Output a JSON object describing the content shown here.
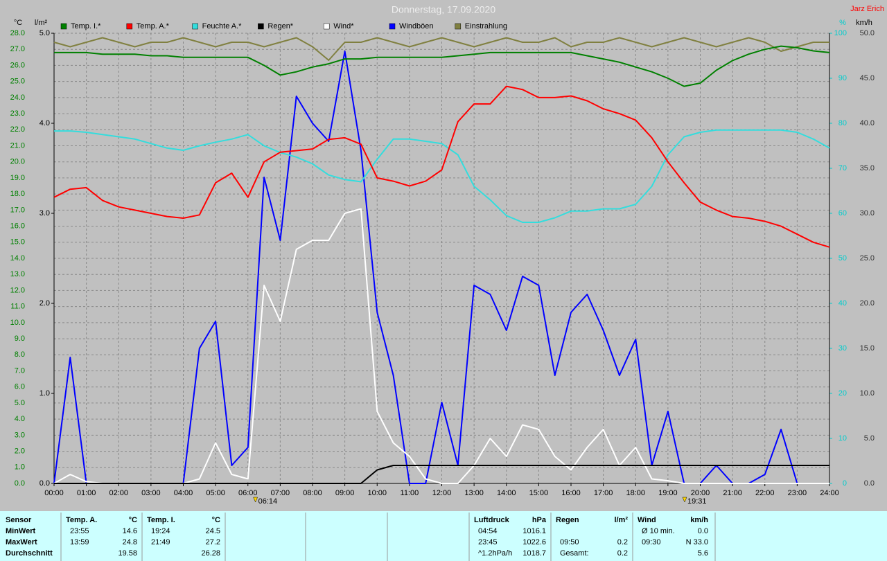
{
  "chart_data": {
    "type": "line",
    "title": "Donnerstag, 17.09.2020",
    "author": "Jarz Erich",
    "ylabel": "°C",
    "y2label": "l/m²",
    "y3label": "%",
    "y4label": "km/h",
    "xlim": [
      0,
      24
    ],
    "xticks": [
      {
        "value": 0,
        "label": "00:00"
      },
      {
        "value": 1,
        "label": "01:00"
      },
      {
        "value": 2,
        "label": "02:00"
      },
      {
        "value": 3,
        "label": "03:00"
      },
      {
        "value": 4,
        "label": "04:00"
      },
      {
        "value": 5,
        "label": "05:00"
      },
      {
        "value": 6,
        "label": "06:00"
      },
      {
        "value": 7,
        "label": "07:00"
      },
      {
        "value": 8,
        "label": "08:00"
      },
      {
        "value": 9,
        "label": "09:00"
      },
      {
        "value": 10,
        "label": "10:00"
      },
      {
        "value": 11,
        "label": "11:00"
      },
      {
        "value": 12,
        "label": "12:00"
      },
      {
        "value": 13,
        "label": "13:00"
      },
      {
        "value": 14,
        "label": "14:00"
      },
      {
        "value": 15,
        "label": "15:00"
      },
      {
        "value": 16,
        "label": "16:00"
      },
      {
        "value": 17,
        "label": "17:00"
      },
      {
        "value": 18,
        "label": "18:00"
      },
      {
        "value": 19,
        "label": "19:00"
      },
      {
        "value": 20,
        "label": "20:00"
      },
      {
        "value": 21,
        "label": "21:00"
      },
      {
        "value": 22,
        "label": "22:00"
      },
      {
        "value": 23,
        "label": "23:00"
      },
      {
        "value": 24,
        "label": "24:00"
      }
    ],
    "ylim": [
      0,
      28
    ],
    "yticks": [
      {
        "value": 0,
        "label": "0.0"
      },
      {
        "value": 1,
        "label": "1.0"
      },
      {
        "value": 2,
        "label": "2.0"
      },
      {
        "value": 3,
        "label": "3.0"
      },
      {
        "value": 4,
        "label": "4.0"
      },
      {
        "value": 5,
        "label": "5.0"
      },
      {
        "value": 6,
        "label": "6.0"
      },
      {
        "value": 7,
        "label": "7.0"
      },
      {
        "value": 8,
        "label": "8.0"
      },
      {
        "value": 9,
        "label": "9.0"
      },
      {
        "value": 10,
        "label": "10.0"
      },
      {
        "value": 11,
        "label": "11.0"
      },
      {
        "value": 12,
        "label": "12.0"
      },
      {
        "value": 13,
        "label": "13.0"
      },
      {
        "value": 14,
        "label": "14.0"
      },
      {
        "value": 15,
        "label": "15.0"
      },
      {
        "value": 16,
        "label": "16.0"
      },
      {
        "value": 17,
        "label": "17.0"
      },
      {
        "value": 18,
        "label": "18.0"
      },
      {
        "value": 19,
        "label": "19.0"
      },
      {
        "value": 20,
        "label": "20.0"
      },
      {
        "value": 21,
        "label": "21.0"
      },
      {
        "value": 22,
        "label": "22.0"
      },
      {
        "value": 23,
        "label": "23.0"
      },
      {
        "value": 24,
        "label": "24.0"
      },
      {
        "value": 25,
        "label": "25.0"
      },
      {
        "value": 26,
        "label": "26.0"
      },
      {
        "value": 27,
        "label": "27.0"
      },
      {
        "value": 28,
        "label": "28.0"
      }
    ],
    "y2lim": [
      0,
      5
    ],
    "y2ticks": [
      {
        "value": 0,
        "label": "0.0"
      },
      {
        "value": 1,
        "label": "1.0"
      },
      {
        "value": 2,
        "label": "2.0"
      },
      {
        "value": 3,
        "label": "3.0"
      },
      {
        "value": 4,
        "label": "4.0"
      },
      {
        "value": 5,
        "label": "5.0"
      }
    ],
    "y3lim": [
      0,
      100
    ],
    "y3ticks": [
      0,
      10,
      20,
      30,
      40,
      50,
      60,
      70,
      80,
      90,
      100
    ],
    "y4lim": [
      0,
      50
    ],
    "y4ticks": [
      {
        "value": 0,
        "label": "0.0"
      },
      {
        "value": 5,
        "label": "5.0"
      },
      {
        "value": 10,
        "label": "10.0"
      },
      {
        "value": 15,
        "label": "15.0"
      },
      {
        "value": 20,
        "label": "20.0"
      },
      {
        "value": 25,
        "label": "25.0"
      },
      {
        "value": 30,
        "label": "30.0"
      },
      {
        "value": 35,
        "label": "35.0"
      },
      {
        "value": 40,
        "label": "40.0"
      },
      {
        "value": 45,
        "label": "45.0"
      },
      {
        "value": 50,
        "label": "50.0"
      }
    ],
    "grid": true,
    "x": [
      0,
      0.5,
      1,
      1.5,
      2,
      2.5,
      3,
      3.5,
      4,
      4.5,
      5,
      5.5,
      6,
      6.5,
      7,
      7.5,
      8,
      8.5,
      9,
      9.5,
      10,
      10.5,
      11,
      11.5,
      12,
      12.5,
      13,
      13.5,
      14,
      14.5,
      15,
      15.5,
      16,
      16.5,
      17,
      17.5,
      18,
      18.5,
      19,
      19.5,
      20,
      20.5,
      21,
      21.5,
      22,
      22.5,
      23,
      23.5,
      24
    ],
    "series": [
      {
        "name": "Temp. I.*",
        "color": "#008000",
        "axis": "y",
        "values": [
          26.8,
          26.8,
          26.8,
          26.7,
          26.7,
          26.7,
          26.6,
          26.6,
          26.5,
          26.5,
          26.5,
          26.5,
          26.5,
          26.0,
          25.4,
          25.6,
          25.9,
          26.1,
          26.4,
          26.4,
          26.5,
          26.5,
          26.5,
          26.5,
          26.5,
          26.6,
          26.7,
          26.8,
          26.8,
          26.8,
          26.8,
          26.8,
          26.8,
          26.6,
          26.4,
          26.2,
          25.9,
          25.6,
          25.2,
          24.7,
          24.9,
          25.7,
          26.3,
          26.7,
          27.0,
          27.2,
          27.1,
          26.9,
          26.8
        ]
      },
      {
        "name": "Temp. A.*",
        "color": "#ff0000",
        "axis": "y",
        "values": [
          17.8,
          18.3,
          18.4,
          17.6,
          17.2,
          17.0,
          16.8,
          16.6,
          16.5,
          16.7,
          18.7,
          19.3,
          17.8,
          20.0,
          20.6,
          20.7,
          20.8,
          21.4,
          21.5,
          21.1,
          19.0,
          18.8,
          18.5,
          18.8,
          19.5,
          22.5,
          23.6,
          23.6,
          24.7,
          24.5,
          24.0,
          24.0,
          24.1,
          23.8,
          23.3,
          23.0,
          22.6,
          21.5,
          20.0,
          18.7,
          17.5,
          17.0,
          16.6,
          16.5,
          16.3,
          16.0,
          15.5,
          15.0,
          14.7
        ]
      },
      {
        "name": "Feuchte A.*",
        "color": "#33dddd",
        "axis": "y3",
        "values": [
          78.3,
          78.3,
          78.0,
          77.5,
          77.0,
          76.5,
          75.5,
          74.5,
          74.0,
          75.0,
          75.8,
          76.5,
          77.5,
          75.0,
          73.5,
          72.5,
          71.0,
          68.5,
          67.5,
          67.0,
          72.0,
          76.5,
          76.5,
          76.0,
          75.5,
          73.0,
          66.0,
          63.0,
          59.5,
          58.0,
          58.0,
          59.0,
          60.5,
          60.5,
          61.0,
          61.0,
          62.0,
          66.0,
          73.0,
          77.0,
          78.0,
          78.5,
          78.5,
          78.5,
          78.5,
          78.5,
          78.0,
          76.5,
          74.5
        ]
      },
      {
        "name": "Regen*",
        "color": "#000000",
        "axis": "y2",
        "values": [
          0,
          0,
          0,
          0,
          0,
          0,
          0,
          0,
          0,
          0,
          0,
          0,
          0,
          0,
          0,
          0,
          0,
          0,
          0,
          0,
          0.15,
          0.2,
          0.2,
          0.2,
          0.2,
          0.2,
          0.2,
          0.2,
          0.2,
          0.2,
          0.2,
          0.2,
          0.2,
          0.2,
          0.2,
          0.2,
          0.2,
          0.2,
          0.2,
          0.2,
          0.2,
          0.2,
          0.2,
          0.2,
          0.2,
          0.2,
          0.2,
          0.2,
          0.2
        ]
      },
      {
        "name": "Wind*",
        "color": "#ffffff",
        "axis": "y4",
        "values": [
          0,
          1.0,
          0.2,
          0,
          0,
          0,
          0,
          0,
          0,
          0.5,
          4.5,
          1.0,
          0.5,
          22.0,
          18.0,
          26.0,
          27.0,
          27.0,
          30.0,
          30.5,
          8.0,
          4.5,
          3.0,
          0.5,
          0,
          0,
          2.0,
          5.0,
          3.0,
          6.5,
          6.0,
          3.0,
          1.5,
          4.0,
          6.0,
          2.0,
          4.0,
          0.5,
          0.3,
          0,
          0,
          0,
          0,
          0,
          0,
          0,
          0,
          0,
          0
        ]
      },
      {
        "name": "Windböen",
        "color": "#0000ff",
        "axis": "y4",
        "values": [
          0,
          14.0,
          0,
          0,
          0,
          0,
          0,
          0,
          0,
          15.0,
          18.0,
          2.0,
          4.0,
          34.0,
          27.0,
          43.0,
          40.0,
          38.0,
          48.0,
          37.0,
          19.0,
          12.0,
          0,
          0,
          9.0,
          2.0,
          22.0,
          21.0,
          17.0,
          23.0,
          22.0,
          12.0,
          19.0,
          21.0,
          17.0,
          12.0,
          16.0,
          2.0,
          8.0,
          0,
          0,
          2.0,
          0,
          0,
          1.0,
          6.0,
          0,
          0,
          0
        ]
      },
      {
        "name": "Einstrahlung",
        "color": "#808040",
        "axis": "y3",
        "values": [
          98,
          97,
          98,
          99,
          98,
          97,
          98,
          98,
          99,
          98,
          97,
          98,
          98,
          97,
          98,
          99,
          97,
          94,
          98,
          98,
          99,
          98,
          97,
          98,
          99,
          98,
          97,
          98,
          99,
          98,
          98,
          99,
          97,
          98,
          98,
          99,
          98,
          97,
          98,
          99,
          98,
          97,
          98,
          99,
          98,
          96,
          97,
          98,
          98
        ]
      }
    ],
    "sun_markers": [
      {
        "x": 6.2333,
        "label": "06:14"
      },
      {
        "x": 19.5167,
        "label": "19:31"
      }
    ]
  },
  "table": {
    "sensor_header": "Sensor",
    "columns": [
      {
        "title": "Temp. A.",
        "unit": "°C"
      },
      {
        "title": "Temp. I.",
        "unit": "°C"
      },
      {
        "title": "Luftdruck",
        "unit": "hPa"
      },
      {
        "title": "Regen",
        "unit": "l/m²"
      },
      {
        "title": "Wind",
        "unit": "km/h"
      }
    ],
    "rows": [
      {
        "label": "MinWert",
        "cells": [
          [
            "23:55",
            "14.6"
          ],
          [
            "19:24",
            "24.5"
          ],
          [
            "04:54",
            "1016.1"
          ],
          [
            null,
            null
          ],
          [
            "Ø 10 min.",
            "0.0"
          ]
        ]
      },
      {
        "label": "MaxWert",
        "cells": [
          [
            "13:59",
            "24.8"
          ],
          [
            "21:49",
            "27.2"
          ],
          [
            "23:45",
            "1022.6"
          ],
          [
            "09:50",
            "0.2"
          ],
          [
            "09:30",
            "N 33.0"
          ]
        ]
      },
      {
        "label": "Durchschnitt",
        "cells": [
          [
            null,
            "19.58"
          ],
          [
            null,
            "26.28"
          ],
          [
            "^1.2hPa/h",
            "1018.7"
          ],
          [
            "Gesamt:",
            "0.2"
          ],
          [
            null,
            "5.6"
          ]
        ]
      }
    ]
  }
}
